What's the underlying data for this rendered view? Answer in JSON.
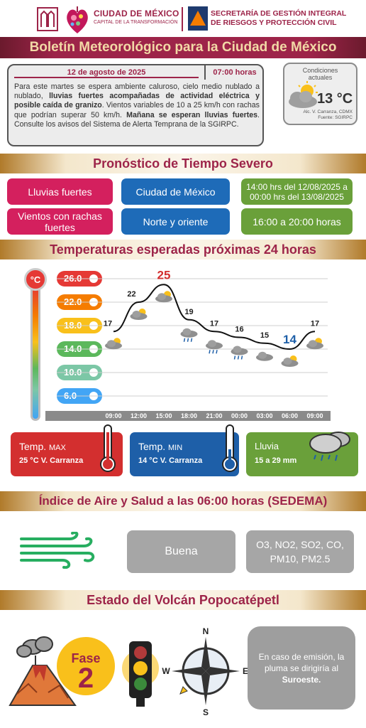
{
  "header": {
    "cdmx_title": "CIUDAD DE MÉXICO",
    "cdmx_subtitle": "CAPITAL DE LA TRANSFORMACIÓN",
    "sgirpc_line1": "SECRETARÍA DE GESTIÓN INTEGRAL",
    "sgirpc_line2": "DE RIESGOS Y PROTECCIÓN CIVIL",
    "title": "Boletín Meteorológico para la Ciudad de México"
  },
  "bulletin": {
    "date": "12 de agosto de 2025",
    "time": "07:00 horas",
    "text_1": "Para este martes se espera ambiente caluroso, cielo medio nublado a nublado, ",
    "text_bold_1": "lluvias fuertes acompañadas de actividad eléctrica y posible caída de granizo",
    "text_2": ". Vientos variables de 10 a 25 km/h con rachas que podrían superar 50 km/h. ",
    "text_bold_2": "Mañana se esperan lluvias fuertes",
    "text_3": ". Consulte los avisos del Sistema de Alerta Temprana de la SGIRPC."
  },
  "current": {
    "title_1": "Condiciones",
    "title_2": "actuales",
    "temp": "13 °C",
    "place": "Alc. V. Carranza, CDMX",
    "source": "Fuente: SGIRPC"
  },
  "severe": {
    "title": "Pronóstico de Tiempo Severo",
    "row1": {
      "phenomenon": "Lluvias fuertes",
      "zone": "Ciudad de México",
      "period": "14:00 hrs del 12/08/2025 a 00:00 hrs del 13/08/2025"
    },
    "row2": {
      "phenomenon": "Vientos con rachas fuertes",
      "zone": "Norte y oriente",
      "period": "16:00 a 20:00 horas"
    }
  },
  "temps": {
    "title": "Temperaturas esperadas próximas 24 horas",
    "unit_badge": "°C",
    "scale": [
      "26.0",
      "22.0",
      "18.0",
      "14.0",
      "10.0",
      "6.0"
    ],
    "scale_colors": [
      "#e53935",
      "#f57c00",
      "#f9c01b",
      "#5cb85c",
      "#7cc7a6",
      "#42a5f5"
    ],
    "times": [
      "09:00",
      "12:00",
      "15:00",
      "18:00",
      "21:00",
      "00:00",
      "03:00",
      "06:00",
      "09:00"
    ],
    "labels": [
      "17",
      "22",
      "25",
      "19",
      "17",
      "16",
      "15",
      "14",
      "17"
    ],
    "values": [
      17,
      22,
      25,
      19,
      17,
      16,
      15,
      14,
      17
    ],
    "max_card": {
      "label": "Temp.",
      "sub": "MAX",
      "value": "25 °C  V. Carranza"
    },
    "min_card": {
      "label": "Temp.",
      "sub": "MIN",
      "value": "14 °C  V. Carranza"
    },
    "rain_card": {
      "label": "Lluvia",
      "value": "15 a 29 mm"
    }
  },
  "air": {
    "title": "Índice de Aire y Salud a las 06:00 horas (SEDEMA)",
    "status": "Buena",
    "pollutants_line1": "O3, NO2, SO2, CO,",
    "pollutants_line2": "PM10, PM2.5"
  },
  "volcano": {
    "title": "Estado del Volcán Popocatépetl",
    "phase_label": "Fase",
    "phase_number": "2",
    "compass_n": "N",
    "compass_s": "S",
    "compass_e": "E",
    "compass_w": "W",
    "alert_text": "En caso de emisión, la pluma se dirigiría al",
    "alert_dir": "Suroeste."
  }
}
